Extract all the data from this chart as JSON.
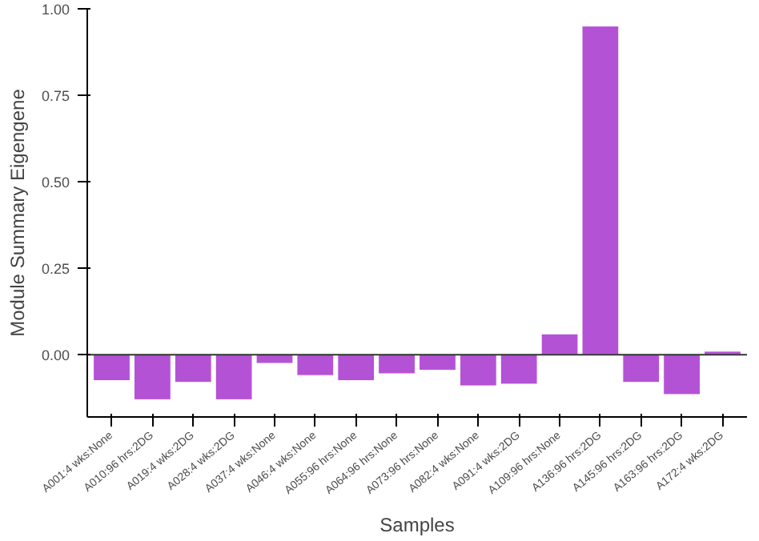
{
  "chart_data": {
    "type": "bar",
    "xlabel": "Samples",
    "ylabel": "Module Summary Eigengene",
    "categories": [
      "A001:4 wks:None",
      "A010:96 hrs:2DG",
      "A019:4 wks:2DG",
      "A028:4 wks:2DG",
      "A037:4 wks:None",
      "A046:4 wks:None",
      "A055:96 hrs:None",
      "A064:96 hrs:None",
      "A073:96 hrs:None",
      "A082:4 wks:None",
      "A091:4 wks:2DG",
      "A109:96 hrs:None",
      "A136:96 hrs:2DG",
      "A145:96 hrs:2DG",
      "A163:96 hrs:2DG",
      "A172:4 wks:2DG"
    ],
    "values": [
      -0.075,
      -0.13,
      -0.08,
      -0.13,
      -0.025,
      -0.06,
      -0.075,
      -0.055,
      -0.045,
      -0.09,
      -0.085,
      0.06,
      0.95,
      -0.08,
      -0.115,
      0.01
    ],
    "color": "#b452d6",
    "ylim": [
      -0.18,
      1.0
    ],
    "yticks": [
      {
        "value": 0,
        "label": "0.00"
      },
      {
        "value": 0.25,
        "label": "0.25"
      },
      {
        "value": 0.5,
        "label": "0.50"
      },
      {
        "value": 0.75,
        "label": "0.75"
      },
      {
        "value": 1.0,
        "label": "1.00"
      }
    ],
    "ref_lines": [
      {
        "axis": "y",
        "value": 0,
        "color": "#333333"
      }
    ],
    "grid": false
  }
}
